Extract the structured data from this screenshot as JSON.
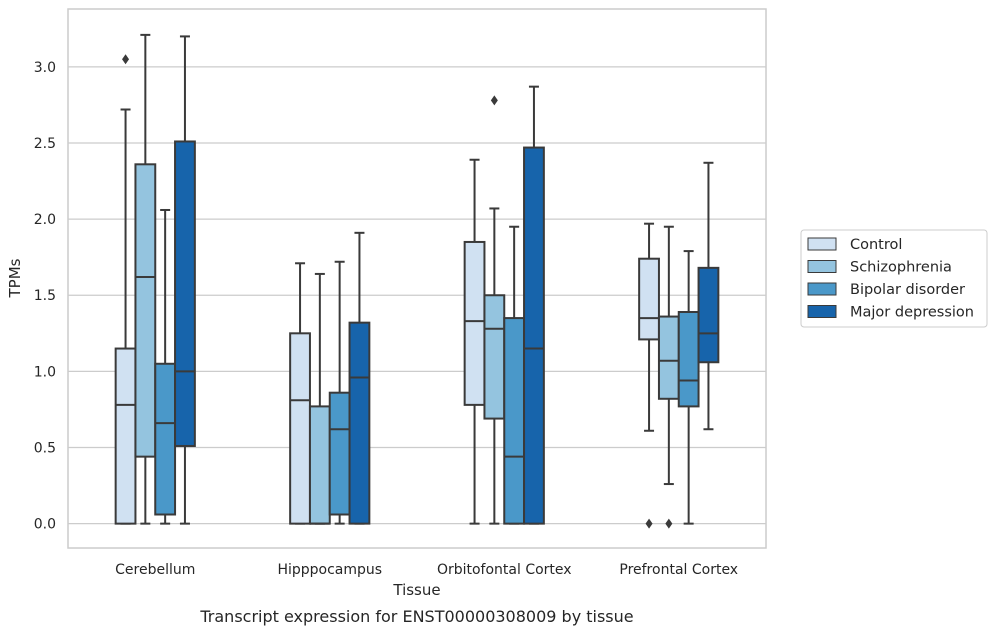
{
  "chart_data": {
    "type": "boxplot",
    "xlabel": "Tissue",
    "ylabel": "TPMs",
    "caption": "Transcript expression for ENST00000308009 by tissue",
    "ylim": [
      -0.16,
      3.38
    ],
    "y_ticks": [
      "0.0",
      "0.5",
      "1.0",
      "1.5",
      "2.0",
      "2.5",
      "3.0"
    ],
    "y_tick_values": [
      0,
      0.5,
      1.0,
      1.5,
      2.0,
      2.5,
      3.0
    ],
    "grid": "horizontal",
    "legend_position": "right",
    "categories": [
      "Cerebellum",
      "Hipppocampus",
      "Orbitofontal Cortex",
      "Prefrontal Cortex"
    ],
    "series": [
      {
        "name": "Control",
        "color": "#d0e1f2",
        "boxes": [
          {
            "whislo": 0.0,
            "q1": 0.0,
            "med": 0.78,
            "q3": 1.15,
            "whishi": 2.72,
            "fliers": [
              3.05
            ]
          },
          {
            "whislo": 0.0,
            "q1": 0.0,
            "med": 0.81,
            "q3": 1.25,
            "whishi": 1.71,
            "fliers": []
          },
          {
            "whislo": 0.0,
            "q1": 0.78,
            "med": 1.33,
            "q3": 1.85,
            "whishi": 2.39,
            "fliers": []
          },
          {
            "whislo": 0.61,
            "q1": 1.21,
            "med": 1.35,
            "q3": 1.74,
            "whishi": 1.97,
            "fliers": [
              0.0
            ]
          }
        ]
      },
      {
        "name": "Schizophrenia",
        "color": "#94c4df",
        "boxes": [
          {
            "whislo": 0.0,
            "q1": 0.44,
            "med": 1.62,
            "q3": 2.36,
            "whishi": 3.21,
            "fliers": []
          },
          {
            "whislo": 0.0,
            "q1": 0.0,
            "med": 0.0,
            "q3": 0.77,
            "whishi": 1.64,
            "fliers": []
          },
          {
            "whislo": 0.0,
            "q1": 0.69,
            "med": 1.28,
            "q3": 1.5,
            "whishi": 2.07,
            "fliers": [
              2.78
            ]
          },
          {
            "whislo": 0.26,
            "q1": 0.82,
            "med": 1.07,
            "q3": 1.36,
            "whishi": 1.95,
            "fliers": [
              0.0
            ]
          }
        ]
      },
      {
        "name": "Bipolar disorder",
        "color": "#4a98c9",
        "boxes": [
          {
            "whislo": 0.0,
            "q1": 0.06,
            "med": 0.66,
            "q3": 1.05,
            "whishi": 2.06,
            "fliers": []
          },
          {
            "whislo": 0.0,
            "q1": 0.06,
            "med": 0.62,
            "q3": 0.86,
            "whishi": 1.72,
            "fliers": []
          },
          {
            "whislo": 0.0,
            "q1": 0.0,
            "med": 0.44,
            "q3": 1.35,
            "whishi": 1.95,
            "fliers": []
          },
          {
            "whislo": 0.0,
            "q1": 0.77,
            "med": 0.94,
            "q3": 1.39,
            "whishi": 1.79,
            "fliers": []
          }
        ]
      },
      {
        "name": "Major depression",
        "color": "#1764ab",
        "boxes": [
          {
            "whislo": 0.0,
            "q1": 0.51,
            "med": 1.0,
            "q3": 2.51,
            "whishi": 3.2,
            "fliers": []
          },
          {
            "whislo": 0.0,
            "q1": 0.0,
            "med": 0.96,
            "q3": 1.32,
            "whishi": 1.91,
            "fliers": []
          },
          {
            "whislo": 0.0,
            "q1": 0.0,
            "med": 1.15,
            "q3": 2.47,
            "whishi": 2.87,
            "fliers": []
          },
          {
            "whislo": 0.62,
            "q1": 1.06,
            "med": 1.25,
            "q3": 1.68,
            "whishi": 2.37,
            "fliers": []
          }
        ]
      }
    ]
  }
}
